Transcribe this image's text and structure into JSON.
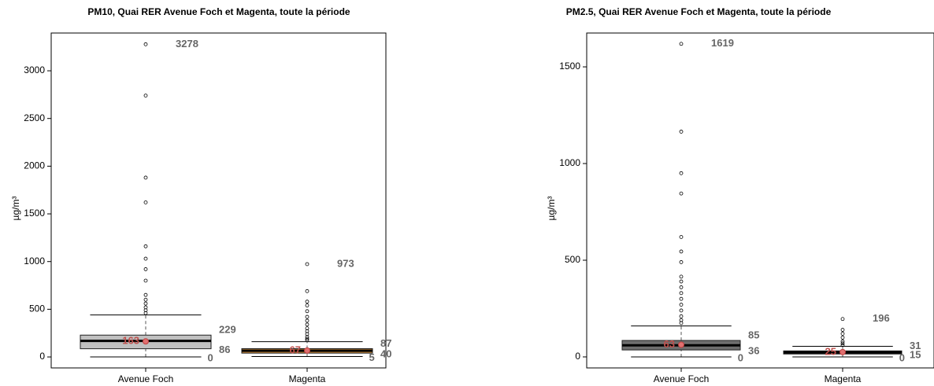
{
  "chart_data": [
    {
      "type": "box",
      "title": "PM10, Quai RER Avenue Foch et Magenta, toute la période",
      "ylabel": "µg/m³",
      "categories": [
        "Avenue Foch",
        "Magenta"
      ],
      "boxes": [
        {
          "color": "#c0c0c0",
          "min": 0,
          "q1": 86,
          "median": 168,
          "q3": 229,
          "max": 440,
          "mean": 163,
          "outliers": [
            3278,
            2740,
            1880,
            1620,
            1160,
            1030,
            920,
            800,
            650,
            600,
            560,
            520,
            490,
            460
          ]
        },
        {
          "color": "#c8893a",
          "min": 5,
          "q1": 40,
          "median": 65,
          "q3": 87,
          "max": 160,
          "mean": 67,
          "outliers": [
            973,
            690,
            580,
            540,
            480,
            420,
            380,
            340,
            300,
            270,
            240,
            210,
            190,
            175
          ]
        }
      ],
      "ylim": [
        -115,
        3396
      ],
      "yticks": [
        0,
        500,
        1000,
        1500,
        2000,
        2500,
        3000
      ]
    },
    {
      "type": "box",
      "title": "PM2.5, Quai RER Avenue Foch et Magenta, toute la période",
      "ylabel": "µg/m³",
      "categories": [
        "Avenue Foch",
        "Magenta"
      ],
      "boxes": [
        {
          "color": "#6e6e6e",
          "min": 0,
          "q1": 36,
          "median": 60,
          "q3": 85,
          "max": 160,
          "mean": 63,
          "outliers": [
            1619,
            1165,
            950,
            845,
            620,
            545,
            490,
            415,
            390,
            360,
            330,
            300,
            270,
            240,
            210,
            190,
            175
          ]
        },
        {
          "color": "#303030",
          "min": 0,
          "q1": 15,
          "median": 24,
          "q3": 31,
          "max": 55,
          "mean": 25,
          "outliers": [
            196,
            140,
            120,
            100,
            80,
            70,
            60
          ]
        }
      ],
      "ylim": [
        -57,
        1675
      ],
      "yticks": [
        0,
        500,
        1000,
        1500
      ]
    }
  ]
}
